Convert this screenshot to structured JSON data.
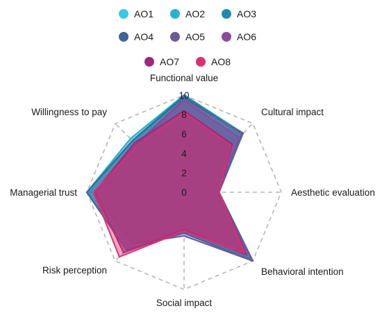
{
  "chart_data": {
    "type": "radar",
    "axes": [
      "Functional value",
      "Cultural impact",
      "Aesthetic evaluation",
      "Behavioral intention",
      "Social impact",
      "Risk perception",
      "Managerial trust",
      "Willingness to pay"
    ],
    "r_range": [
      0,
      10
    ],
    "ticks": [
      "0",
      "2",
      "4",
      "6",
      "8",
      "10"
    ],
    "grid": "dashed octagon",
    "legend_position": "top",
    "series": [
      {
        "name": "AO1",
        "color": "#39c9e3",
        "values": [
          10,
          8.6,
          3.6,
          10,
          4.2,
          8.4,
          10,
          7.8
        ]
      },
      {
        "name": "AO2",
        "color": "#25b3cf",
        "values": [
          10,
          8.6,
          3.6,
          10,
          4.2,
          8.4,
          10,
          7.8
        ]
      },
      {
        "name": "AO3",
        "color": "#1f8bb1",
        "values": [
          10,
          8.5,
          3.6,
          10,
          4.2,
          8.4,
          10,
          7.5
        ]
      },
      {
        "name": "AO4",
        "color": "#3e6496",
        "values": [
          9.8,
          8.5,
          3.6,
          10,
          4.2,
          8.4,
          10,
          7.5
        ]
      },
      {
        "name": "AO5",
        "color": "#6a5a98",
        "values": [
          9.6,
          8.6,
          3.4,
          10,
          4.5,
          7.5,
          9.2,
          7.0
        ]
      },
      {
        "name": "AO6",
        "color": "#8b4a9c",
        "values": [
          9.4,
          8.0,
          3.6,
          9.2,
          4.0,
          8.8,
          9.0,
          7.0
        ]
      },
      {
        "name": "AO7",
        "color": "#9c2a78",
        "values": [
          8.4,
          7.0,
          3.6,
          9.0,
          3.8,
          8.8,
          9.2,
          7.2
        ]
      },
      {
        "name": "AO8",
        "color": "#dd2f73",
        "values": [
          8.2,
          6.8,
          3.6,
          8.8,
          4.0,
          9.4,
          9.3,
          6.8
        ]
      }
    ]
  }
}
